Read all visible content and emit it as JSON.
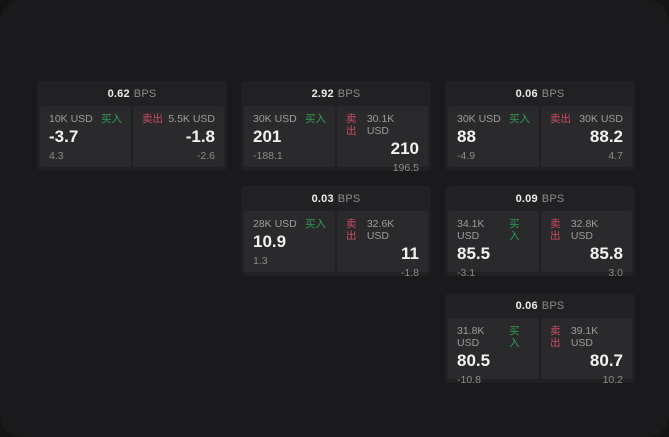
{
  "labels": {
    "bps_unit": "BPS",
    "buy": "买入",
    "sell": "卖出"
  },
  "colors": {
    "buy_green": "#2f9e51",
    "sell_red": "#c94b5f",
    "surface": "#1a1a1c",
    "card": "#212123",
    "panel": "#2a2a2c"
  },
  "cards": [
    {
      "bps": "0.62",
      "buy": {
        "amount": "10K USD",
        "value": "-3.7",
        "delta": "4.3"
      },
      "sell": {
        "amount": "5.5K USD",
        "value": "-1.8",
        "delta": "-2.6"
      }
    },
    {
      "bps": "2.92",
      "buy": {
        "amount": "30K USD",
        "value": "201",
        "delta": "-188.1"
      },
      "sell": {
        "amount": "30.1K USD",
        "value": "210",
        "delta": "196.5"
      }
    },
    {
      "bps": "0.06",
      "buy": {
        "amount": "30K USD",
        "value": "88",
        "delta": "-4.9"
      },
      "sell": {
        "amount": "30K USD",
        "value": "88.2",
        "delta": "4.7"
      }
    },
    {
      "bps": "0.03",
      "buy": {
        "amount": "28K USD",
        "value": "10.9",
        "delta": "1.3"
      },
      "sell": {
        "amount": "32.6K USD",
        "value": "11",
        "delta": "-1.8"
      }
    },
    {
      "bps": "0.09",
      "buy": {
        "amount": "34.1K USD",
        "value": "85.5",
        "delta": "-3.1"
      },
      "sell": {
        "amount": "32.8K USD",
        "value": "85.8",
        "delta": "3.0"
      }
    },
    {
      "bps": "0.06",
      "buy": {
        "amount": "31.8K USD",
        "value": "80.5",
        "delta": "-10.8"
      },
      "sell": {
        "amount": "39.1K USD",
        "value": "80.7",
        "delta": "10.2"
      }
    }
  ]
}
